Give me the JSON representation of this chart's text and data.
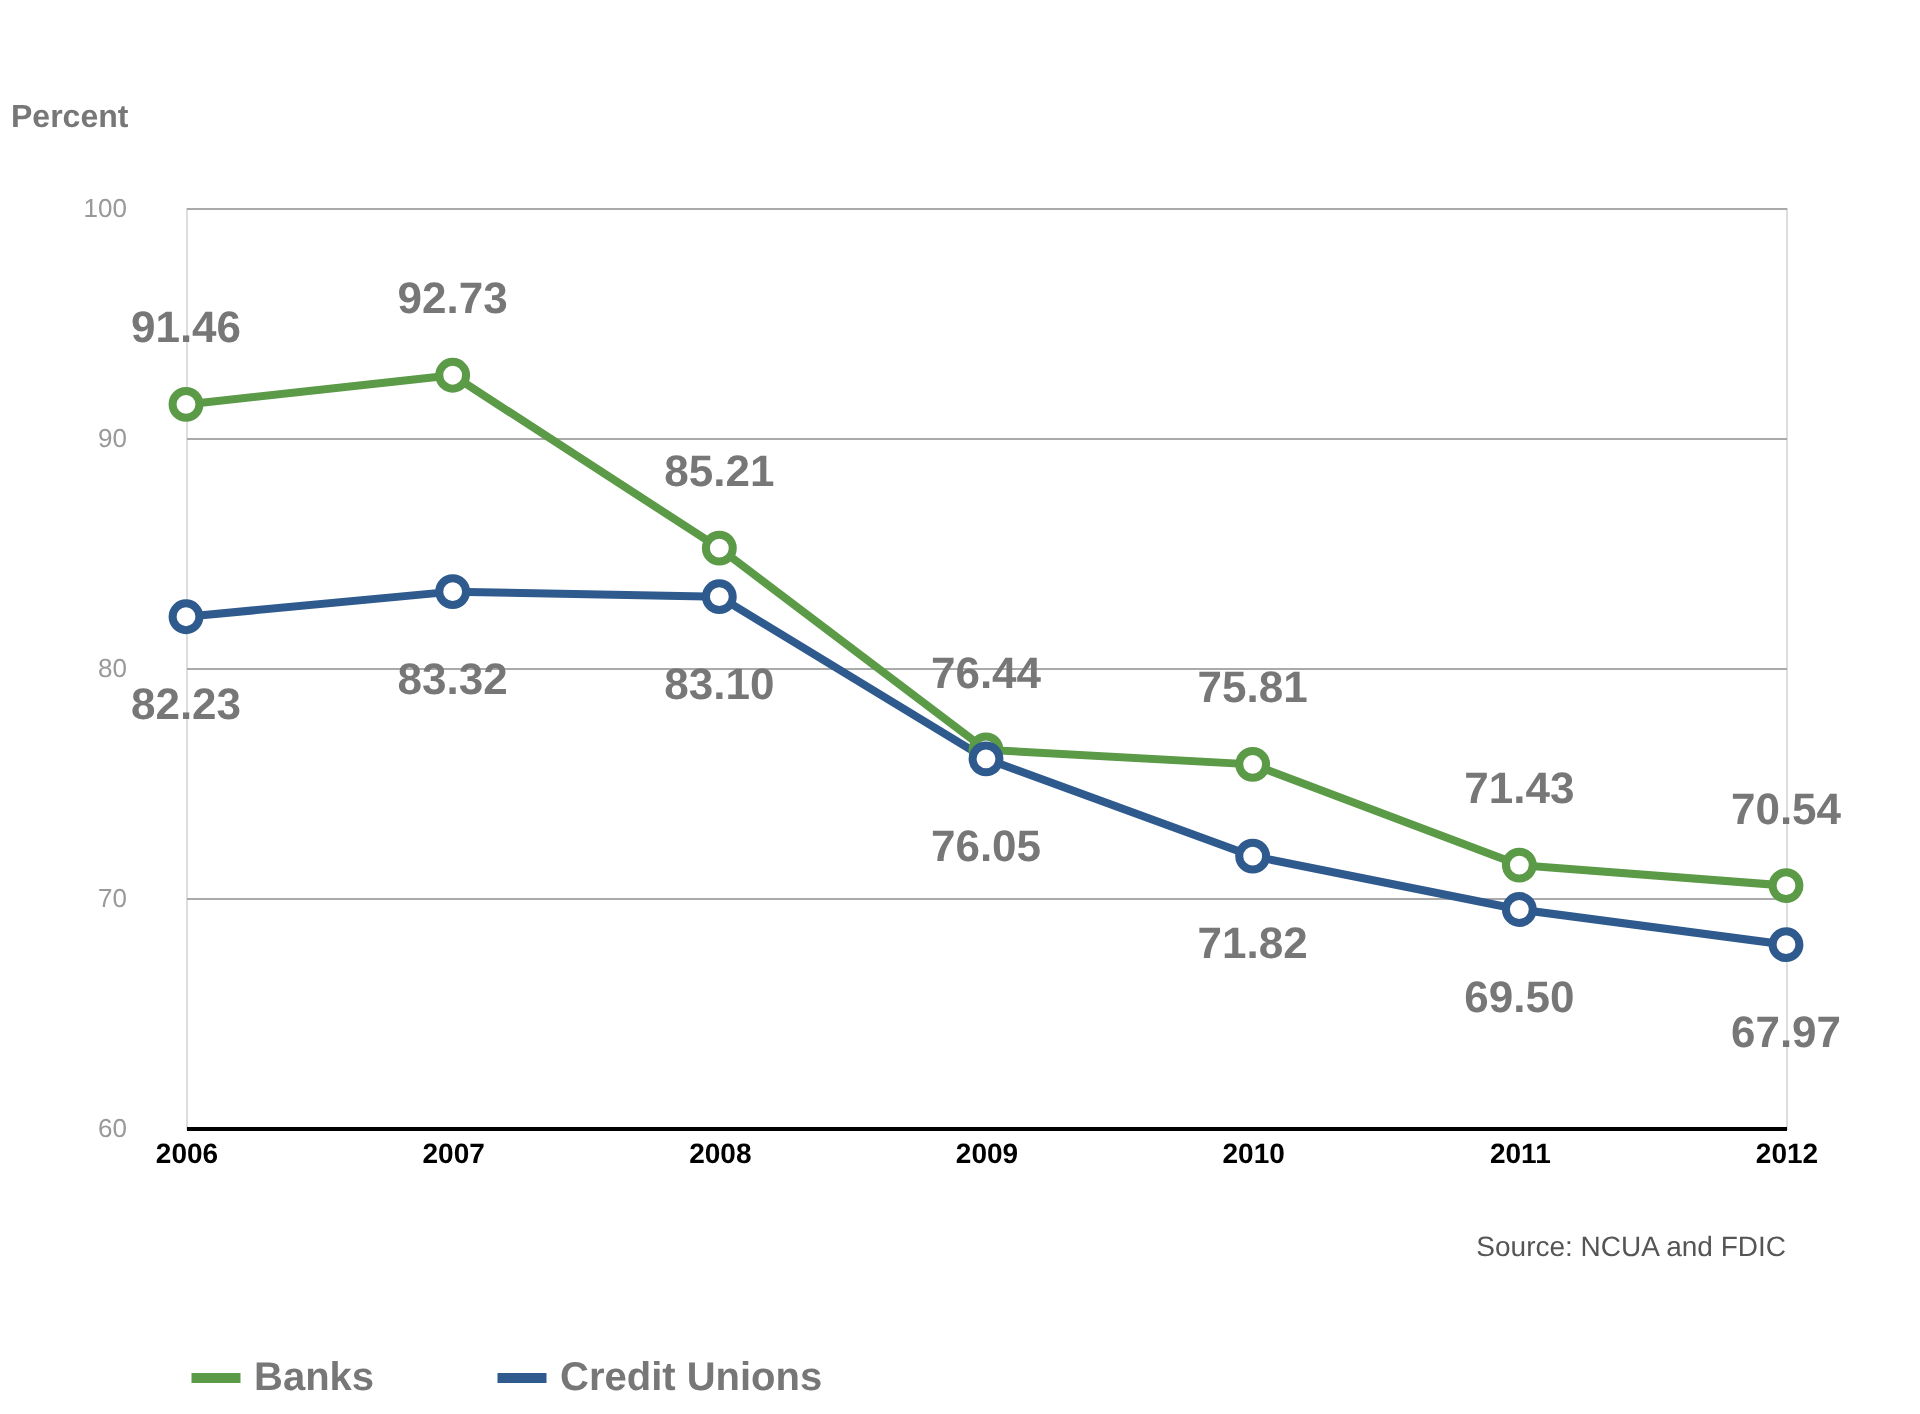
{
  "chart_data": {
    "type": "line",
    "ylabel": "Percent",
    "categories": [
      "2006",
      "2007",
      "2008",
      "2009",
      "2010",
      "2011",
      "2012"
    ],
    "series": [
      {
        "name": "Banks",
        "color": "#5b9a46",
        "values": [
          91.46,
          92.73,
          85.21,
          76.44,
          75.81,
          71.43,
          70.54
        ],
        "value_labels": [
          "91.46",
          "92.73",
          "85.21",
          "76.44",
          "75.81",
          "71.43",
          "70.54"
        ]
      },
      {
        "name": "Credit Unions",
        "color": "#2e5a8e",
        "values": [
          82.23,
          83.32,
          83.1,
          76.05,
          71.82,
          69.5,
          67.97
        ],
        "value_labels": [
          "82.23",
          "83.32",
          "83.10",
          "76.05",
          "71.82",
          "69.50",
          "67.97"
        ]
      }
    ],
    "ylim": [
      60,
      100
    ],
    "yticks": [
      60,
      70,
      80,
      90,
      100
    ],
    "grid": "y",
    "legend": "bottom left",
    "marker": "circle",
    "line_style": "solid",
    "annotations": [
      "Source: NCUA and FDIC"
    ]
  }
}
